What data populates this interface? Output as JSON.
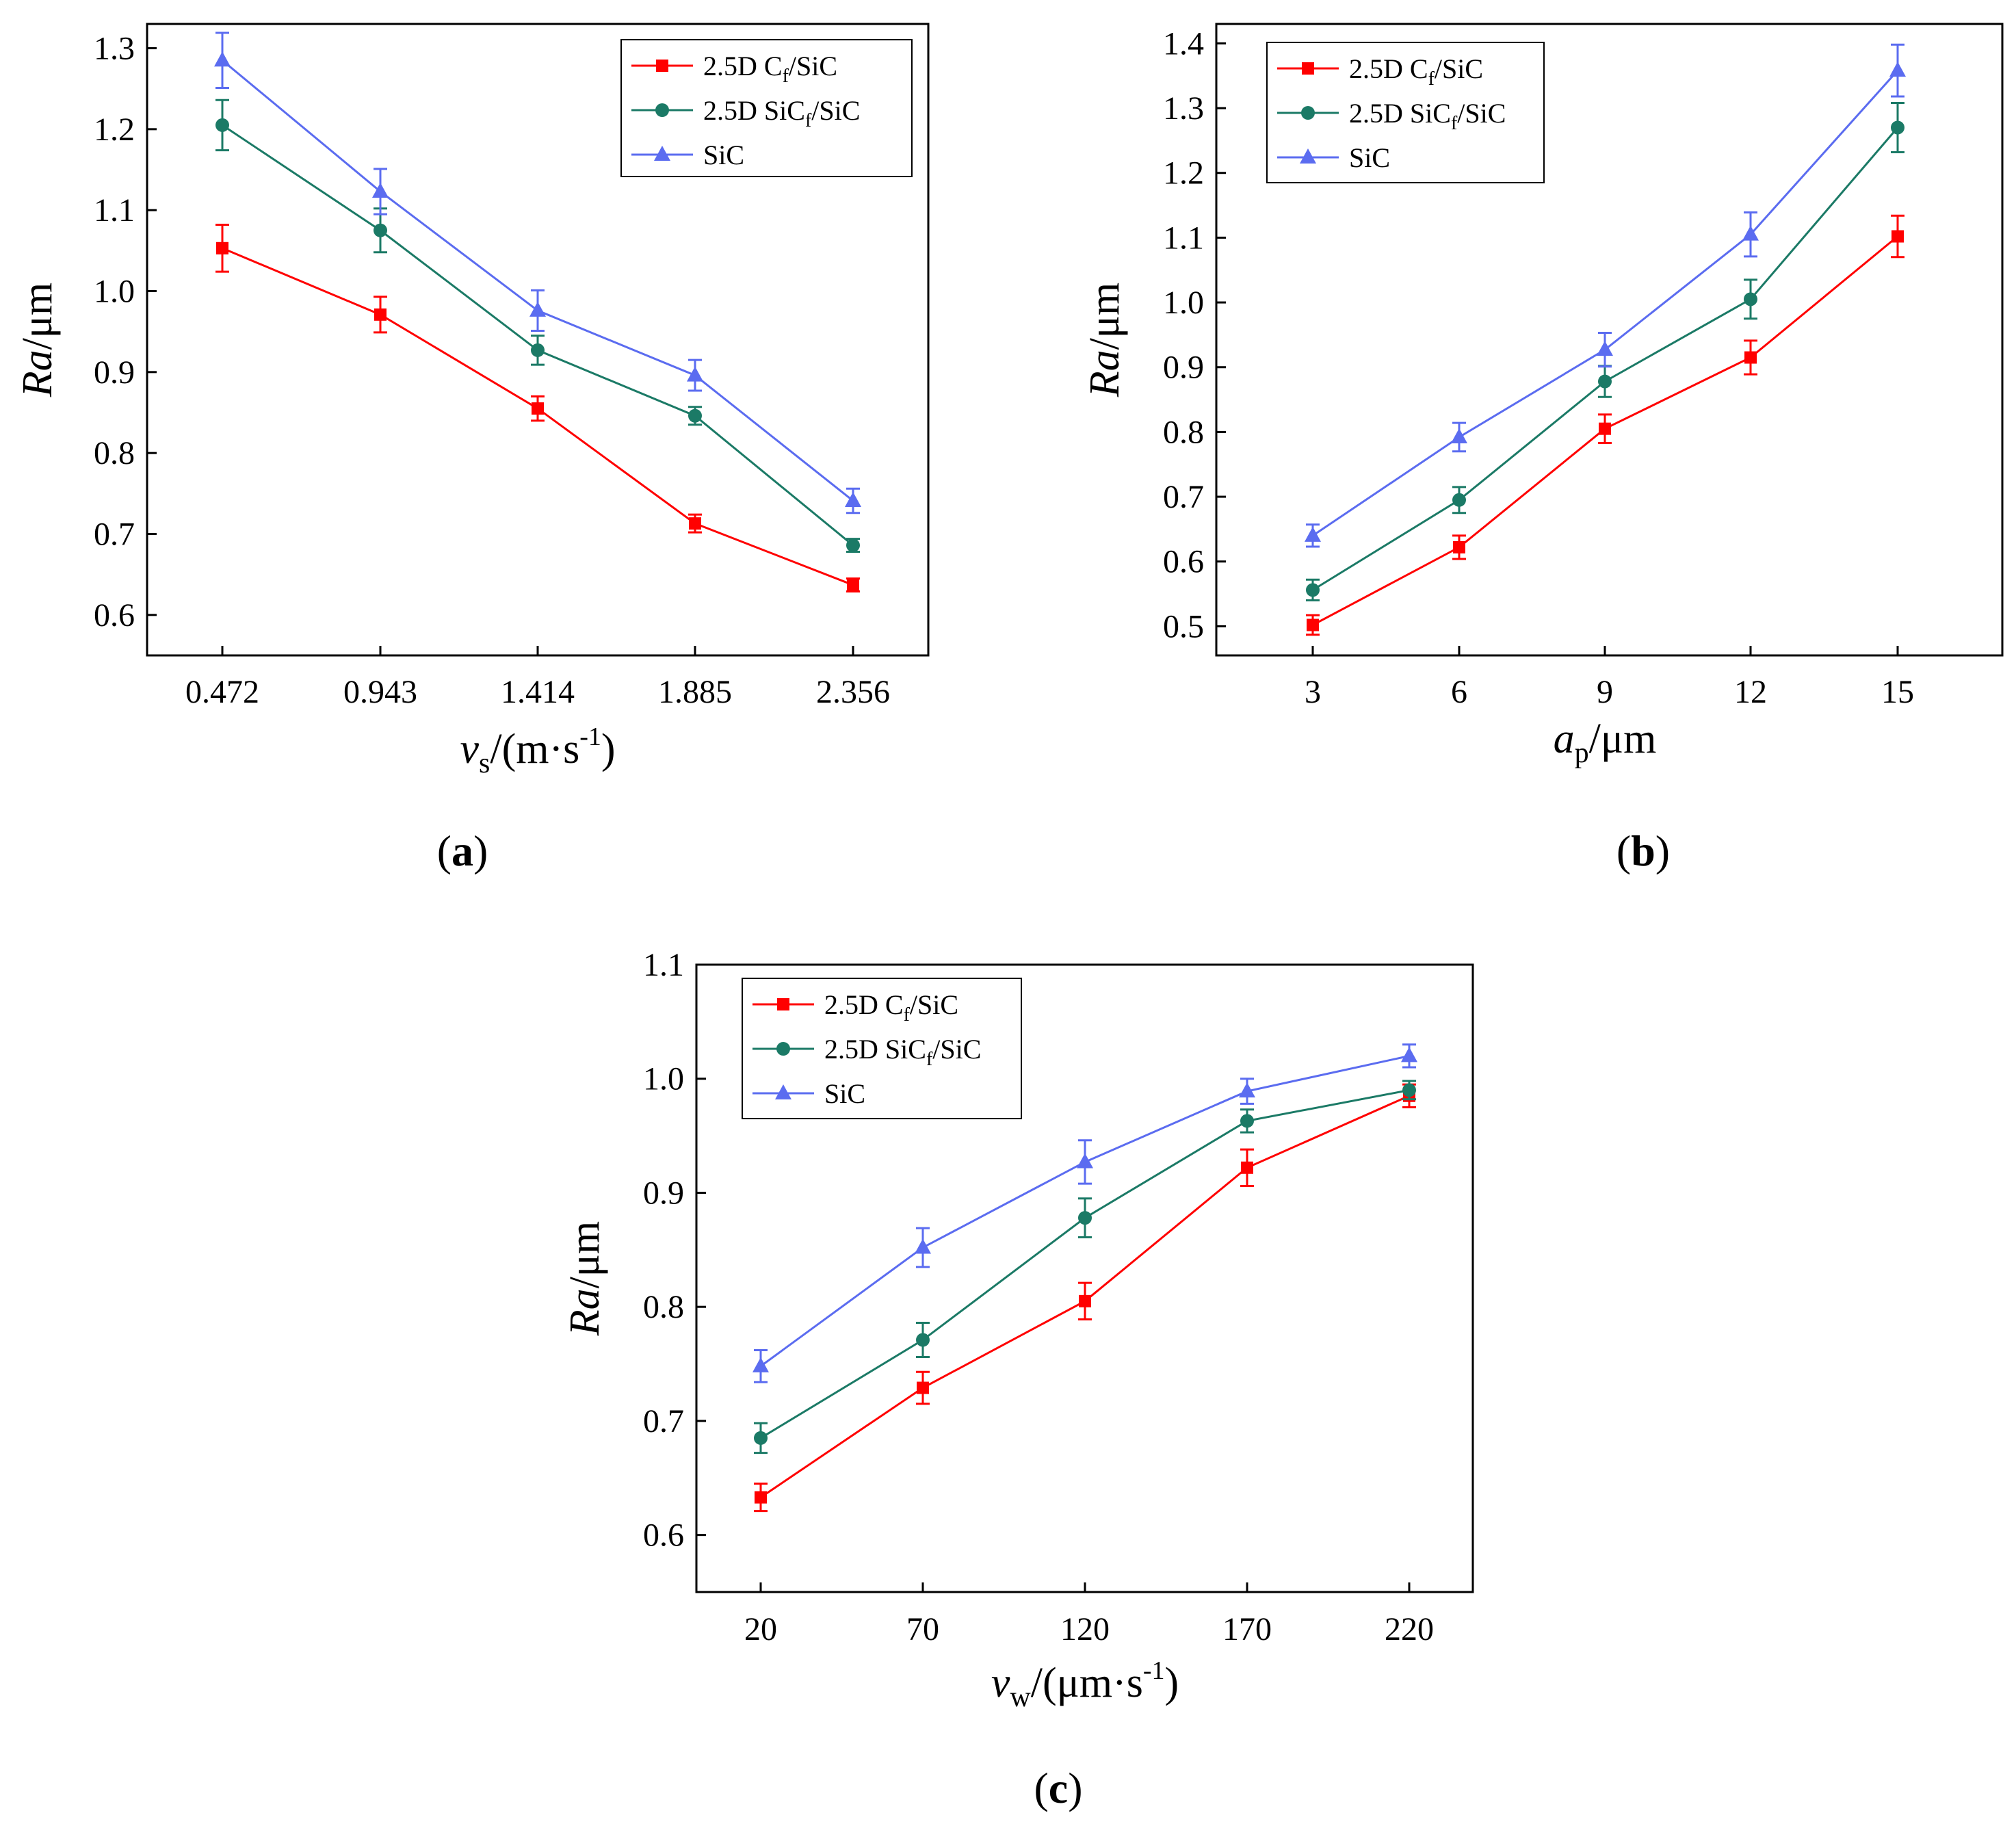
{
  "colors": {
    "cf_sic": "#ff0000",
    "sicf_sic": "#1b7a66",
    "sic": "#5b6cf0"
  },
  "chart_data": [
    {
      "type": "line",
      "panel_label": "(a)",
      "xlabel": "v_s/(m·s^-1)",
      "xlabel_parts": {
        "main": "v",
        "sub": "s",
        "unit": "/(m·s",
        "sup": "-1",
        "close": ")"
      },
      "ylabel": "Ra/μm",
      "ylabel_parts": {
        "italic": "Ra",
        "rest": "/μm"
      },
      "categories": [
        "0.472",
        "0.943",
        "1.414",
        "1.885",
        "2.356"
      ],
      "yticks": [
        "0.6",
        "0.7",
        "0.8",
        "0.9",
        "1.0",
        "1.1",
        "1.2",
        "1.3"
      ],
      "ylim": [
        0.55,
        1.33
      ],
      "legend_position": "top-right",
      "series": [
        {
          "name": "2.5D Cf/SiC",
          "name_main": "2.5D C",
          "name_sub": "f",
          "name_rest": "/SiC",
          "marker": "square",
          "values": [
            1.053,
            0.971,
            0.855,
            0.713,
            0.637
          ],
          "errors": [
            0.029,
            0.022,
            0.015,
            0.011,
            0.008
          ]
        },
        {
          "name": "2.5D SiCf/SiC",
          "name_main": "2.5D SiC",
          "name_sub": "f",
          "name_rest": "/SiC",
          "marker": "circle",
          "values": [
            1.205,
            1.075,
            0.927,
            0.846,
            0.686
          ],
          "errors": [
            0.031,
            0.027,
            0.018,
            0.011,
            0.008
          ]
        },
        {
          "name": "SiC",
          "name_main": "SiC",
          "name_sub": "",
          "name_rest": "",
          "marker": "triangle",
          "values": [
            1.285,
            1.123,
            0.976,
            0.896,
            0.741
          ],
          "errors": [
            0.034,
            0.028,
            0.025,
            0.019,
            0.015
          ]
        }
      ]
    },
    {
      "type": "line",
      "panel_label": "(b)",
      "xlabel": "a_p/μm",
      "xlabel_parts": {
        "main": "a",
        "sub": "p",
        "unit": "/μm",
        "sup": "",
        "close": ""
      },
      "ylabel": "Ra/μm",
      "ylabel_parts": {
        "italic": "Ra",
        "rest": "/μm"
      },
      "categories": [
        "3",
        "6",
        "9",
        "12",
        "15"
      ],
      "yticks": [
        "0.5",
        "0.6",
        "0.7",
        "0.8",
        "0.9",
        "1.0",
        "1.1",
        "1.2",
        "1.3",
        "1.4"
      ],
      "ylim": [
        0.455,
        1.43
      ],
      "legend_position": "top-left",
      "series": [
        {
          "name": "2.5D Cf/SiC",
          "name_main": "2.5D C",
          "name_sub": "f",
          "name_rest": "/SiC",
          "marker": "square",
          "values": [
            0.502,
            0.622,
            0.805,
            0.915,
            1.102
          ],
          "errors": [
            0.015,
            0.018,
            0.022,
            0.026,
            0.032
          ]
        },
        {
          "name": "2.5D SiCf/SiC",
          "name_main": "2.5D SiC",
          "name_sub": "f",
          "name_rest": "/SiC",
          "marker": "circle",
          "values": [
            0.556,
            0.695,
            0.878,
            1.005,
            1.27
          ],
          "errors": [
            0.016,
            0.02,
            0.024,
            0.03,
            0.038
          ]
        },
        {
          "name": "SiC",
          "name_main": "SiC",
          "name_sub": "",
          "name_rest": "",
          "marker": "triangle",
          "values": [
            0.64,
            0.792,
            0.927,
            1.105,
            1.358
          ],
          "errors": [
            0.017,
            0.022,
            0.026,
            0.034,
            0.04
          ]
        }
      ]
    },
    {
      "type": "line",
      "panel_label": "(c)",
      "xlabel": "v_w/(μm·s^-1)",
      "xlabel_parts": {
        "main": "v",
        "sub": "w",
        "unit": "/(μm·s",
        "sup": "-1",
        "close": ")"
      },
      "ylabel": "Ra/μm",
      "ylabel_parts": {
        "italic": "Ra",
        "rest": "/μm"
      },
      "categories": [
        "20",
        "70",
        "120",
        "170",
        "220"
      ],
      "yticks": [
        "0.6",
        "0.7",
        "0.8",
        "0.9",
        "1.0",
        "1.1"
      ],
      "ylim": [
        0.55,
        1.1
      ],
      "legend_position": "top-left",
      "series": [
        {
          "name": "2.5D Cf/SiC",
          "name_main": "2.5D C",
          "name_sub": "f",
          "name_rest": "/SiC",
          "marker": "square",
          "values": [
            0.633,
            0.729,
            0.805,
            0.922,
            0.985
          ],
          "errors": [
            0.012,
            0.014,
            0.016,
            0.016,
            0.01
          ]
        },
        {
          "name": "2.5D SiCf/SiC",
          "name_main": "2.5D SiC",
          "name_sub": "f",
          "name_rest": "/SiC",
          "marker": "circle",
          "values": [
            0.685,
            0.771,
            0.878,
            0.963,
            0.99
          ],
          "errors": [
            0.013,
            0.015,
            0.017,
            0.01,
            0.008
          ]
        },
        {
          "name": "SiC",
          "name_main": "SiC",
          "name_sub": "",
          "name_rest": "",
          "marker": "triangle",
          "values": [
            0.748,
            0.852,
            0.927,
            0.989,
            1.02
          ],
          "errors": [
            0.014,
            0.017,
            0.019,
            0.011,
            0.01
          ]
        }
      ]
    }
  ]
}
